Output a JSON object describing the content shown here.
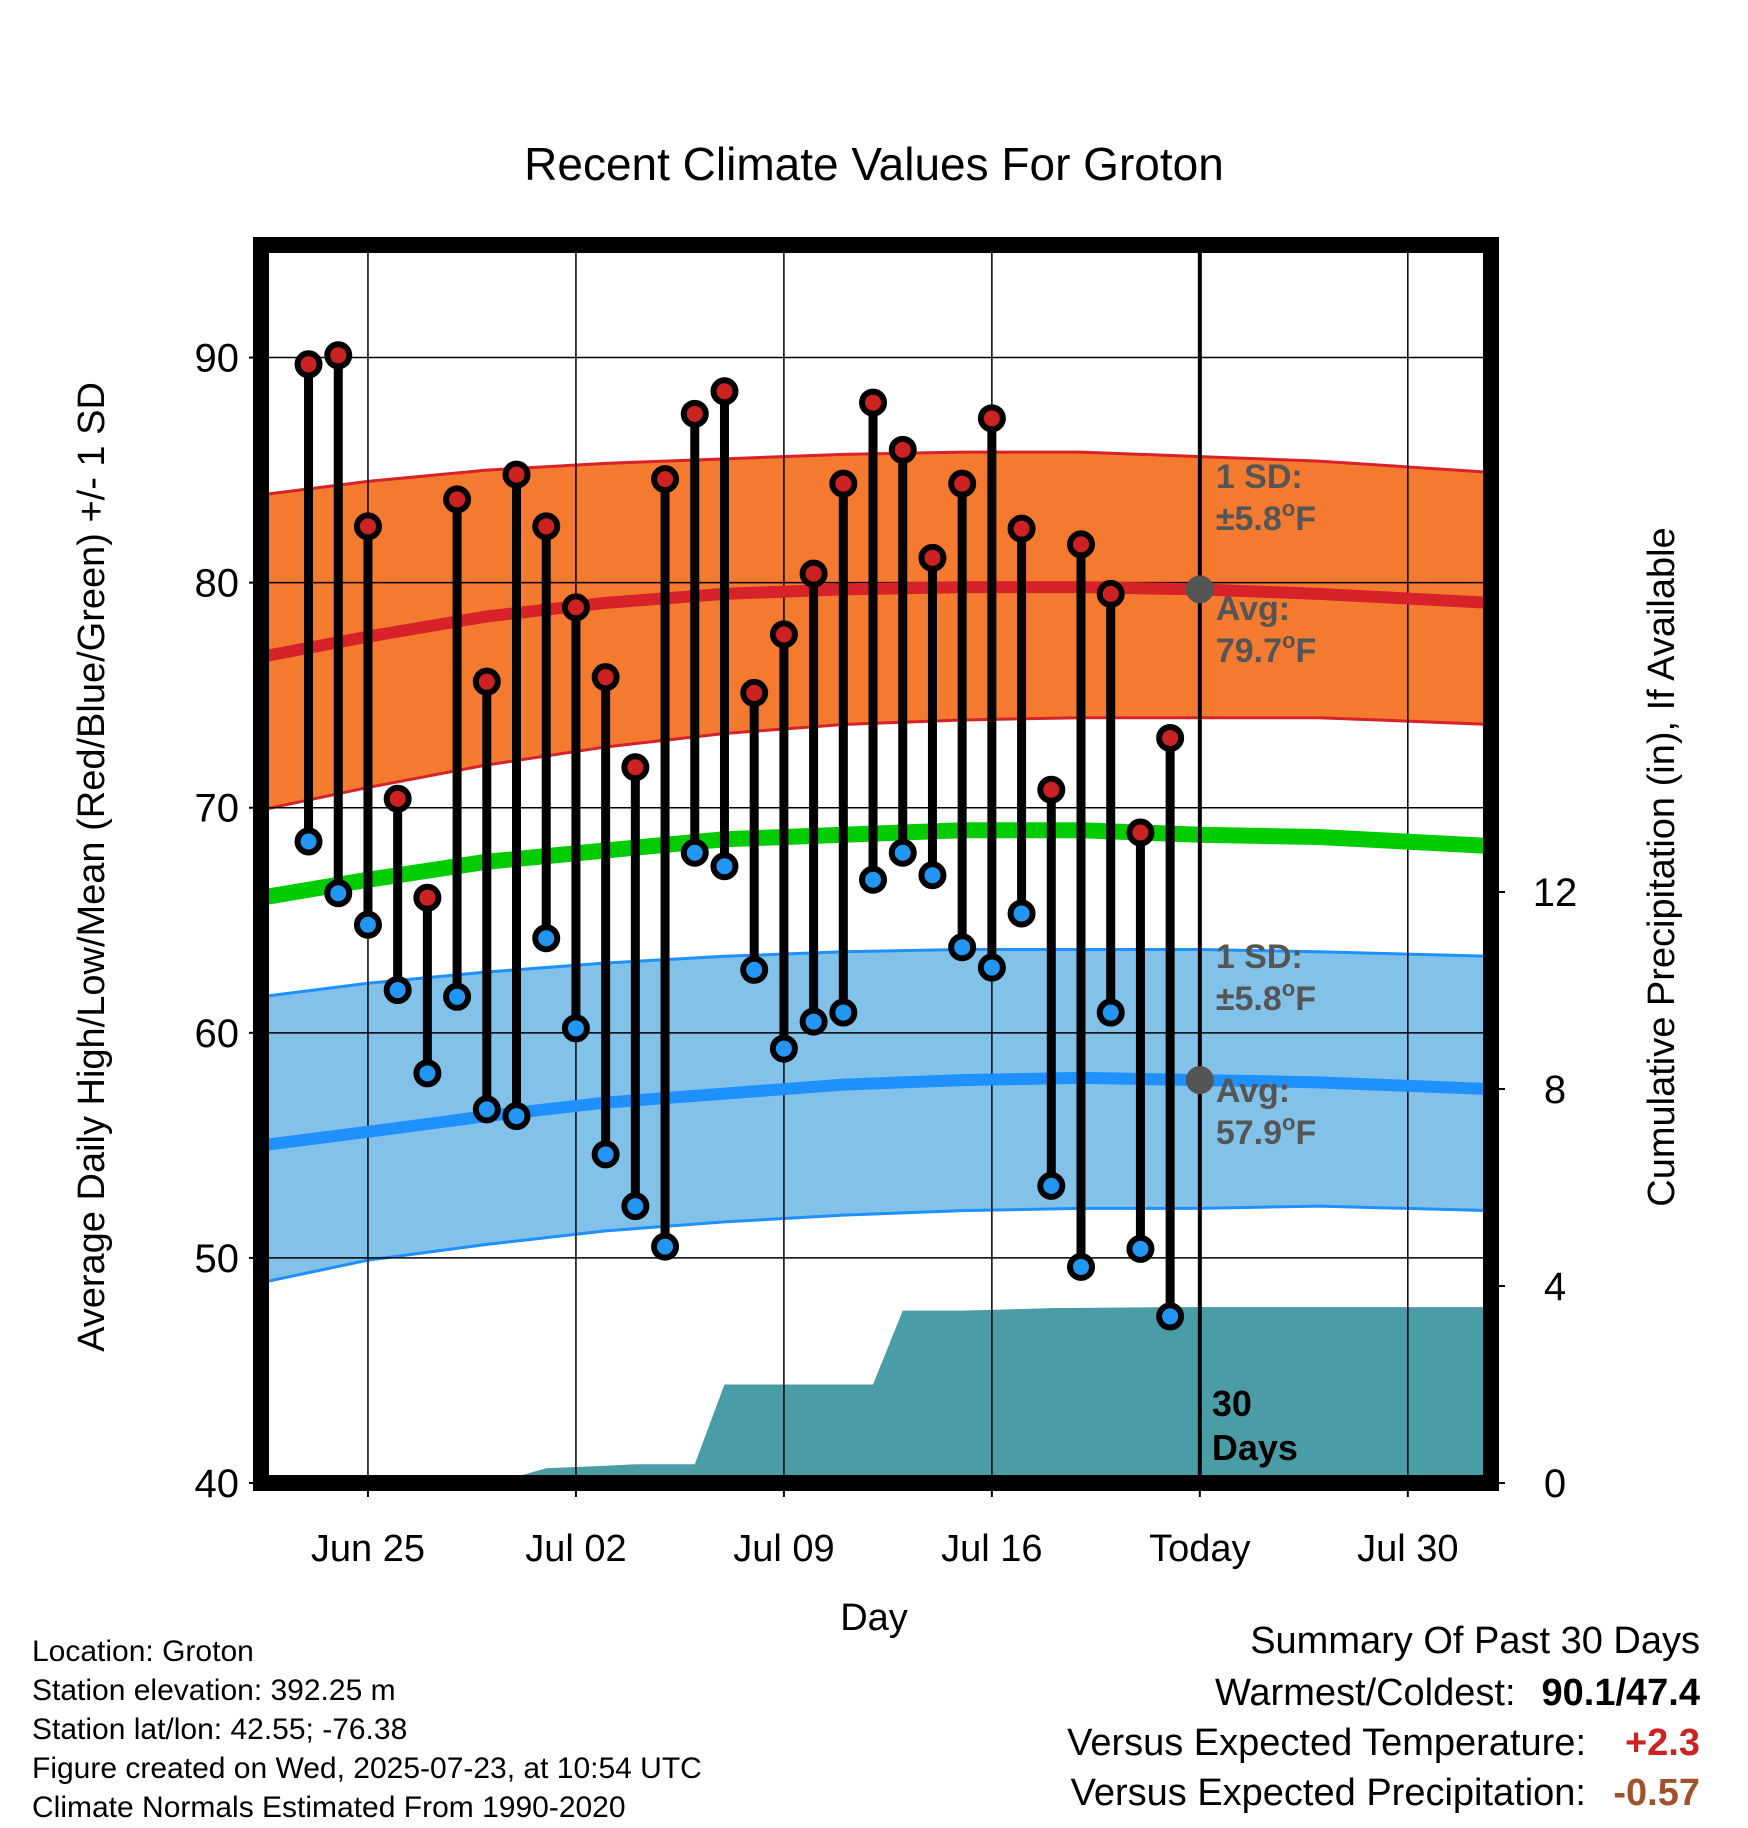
{
  "chart_data": {
    "type": "line",
    "title": "Recent Climate Values For Groton",
    "xlabel": "Day",
    "ylabel": "Average Daily High/Low/Mean (Red/Blue/Green) +/- 1 SD",
    "y2label": "Cumulative Precipitation (in), If Available",
    "ylim": [
      40,
      95
    ],
    "y2lim": [
      0,
      16
    ],
    "yticks": [
      40,
      50,
      60,
      70,
      80,
      90
    ],
    "y2ticks": [
      0,
      4,
      8,
      12
    ],
    "xlim": [
      -3.6,
      37.8
    ],
    "xticks": [
      {
        "day": 0,
        "label": "Jun 25"
      },
      {
        "day": 7,
        "label": "Jul 02"
      },
      {
        "day": 14,
        "label": "Jul 09"
      },
      {
        "day": 21,
        "label": "Jul 16"
      },
      {
        "day": 28,
        "label": "Today"
      },
      {
        "day": 35,
        "label": "Jul 30"
      }
    ],
    "grid": true,
    "daily": {
      "x": [
        -2,
        -1,
        0,
        1,
        2,
        3,
        4,
        5,
        6,
        7,
        8,
        9,
        10,
        11,
        12,
        13,
        14,
        15,
        16,
        17,
        18,
        19,
        20,
        21,
        22,
        23,
        24,
        25,
        26,
        27
      ],
      "highs": [
        89.7,
        90.1,
        82.5,
        70.4,
        66.0,
        83.7,
        75.6,
        84.8,
        82.5,
        78.9,
        75.8,
        71.8,
        84.6,
        87.5,
        88.5,
        75.1,
        77.7,
        80.4,
        84.4,
        88.0,
        85.9,
        81.1,
        84.4,
        87.3,
        82.4,
        70.8,
        81.7,
        79.5,
        68.9,
        73.1
      ],
      "lows": [
        68.5,
        66.2,
        64.8,
        61.9,
        58.2,
        61.6,
        56.6,
        56.3,
        64.2,
        60.2,
        54.6,
        52.3,
        50.5,
        68.0,
        67.4,
        62.8,
        59.3,
        60.5,
        60.9,
        66.8,
        68.0,
        67.0,
        63.8,
        62.9,
        65.3,
        53.2,
        49.6,
        60.9,
        50.4,
        47.4
      ]
    },
    "normals": {
      "x": [
        -3.6,
        0,
        4,
        8,
        12,
        16,
        20,
        24,
        28,
        32,
        37.8
      ],
      "high_avg": [
        76.7,
        77.6,
        78.5,
        79.1,
        79.5,
        79.7,
        79.8,
        79.8,
        79.7,
        79.5,
        79.1
      ],
      "high_sd_upper": [
        83.9,
        84.5,
        85.0,
        85.3,
        85.5,
        85.7,
        85.8,
        85.8,
        85.6,
        85.4,
        84.9
      ],
      "high_sd_lower": [
        69.9,
        70.9,
        71.9,
        72.7,
        73.3,
        73.7,
        73.9,
        74.0,
        74.0,
        74.0,
        73.7
      ],
      "mean_avg": [
        66.0,
        66.8,
        67.6,
        68.1,
        68.6,
        68.8,
        69.0,
        69.0,
        68.8,
        68.7,
        68.3
      ],
      "low_avg": [
        55.0,
        55.6,
        56.3,
        56.9,
        57.3,
        57.7,
        57.9,
        58.0,
        57.9,
        57.8,
        57.5
      ],
      "low_sd_upper": [
        61.6,
        62.2,
        62.7,
        63.1,
        63.4,
        63.6,
        63.7,
        63.7,
        63.7,
        63.6,
        63.4
      ],
      "low_sd_lower": [
        48.9,
        49.9,
        50.6,
        51.2,
        51.6,
        51.9,
        52.1,
        52.2,
        52.2,
        52.3,
        52.1
      ]
    },
    "precip_cumulative": {
      "x": [
        -3.6,
        2,
        4,
        5,
        6,
        8,
        9,
        11,
        12,
        13,
        17,
        18,
        20,
        23,
        27,
        37.8
      ],
      "y": [
        0,
        0,
        0.06,
        0.13,
        0.3,
        0.35,
        0.38,
        0.38,
        2.0,
        2.0,
        2.0,
        3.5,
        3.5,
        3.55,
        3.57,
        3.57
      ]
    },
    "today_markers": {
      "x": 28,
      "high_avg": 79.7,
      "low_avg": 57.9
    },
    "annotations": {
      "high_sd_label": "1 SD:",
      "high_sd_value": "±5.8",
      "high_avg_label": "Avg:",
      "high_avg_value": "79.7",
      "low_sd_label": "1 SD:",
      "low_sd_value": "±5.8",
      "low_avg_label": "Avg:",
      "low_avg_value": "57.9",
      "degree_symbol": "o",
      "unit": "F",
      "days_label_line1": "30",
      "days_label_line2": "Days"
    },
    "colors": {
      "high_band": "#f47a30",
      "high_line": "#d62228",
      "mean_line": "#00cc00",
      "low_band": "#82c2e8",
      "low_line": "#1e90ff",
      "precip": "#4a9ca6",
      "high_dot": "#cc2222",
      "low_dot": "#2196f3",
      "annotation": "#555555",
      "today_dot": "#555555"
    }
  },
  "footer": {
    "location": "Location: Groton",
    "elevation": "Station elevation: 392.25 m",
    "latlon": "Station lat/lon: 42.55; -76.38",
    "created": "Figure created on Wed, 2025-07-23, at 10:54 UTC",
    "normals": "Climate Normals Estimated From 1990-2020"
  },
  "summary": {
    "title": "Summary Of Past 30 Days",
    "warmest_coldest_label": "Warmest/Coldest:",
    "warmest_coldest_value": "90.1/47.4",
    "temp_label": "Versus Expected Temperature:",
    "temp_value": "+2.3",
    "temp_color": "#cc2222",
    "precip_label": "Versus Expected Precipitation:",
    "precip_value": "-0.57",
    "precip_color": "#a0522d"
  }
}
